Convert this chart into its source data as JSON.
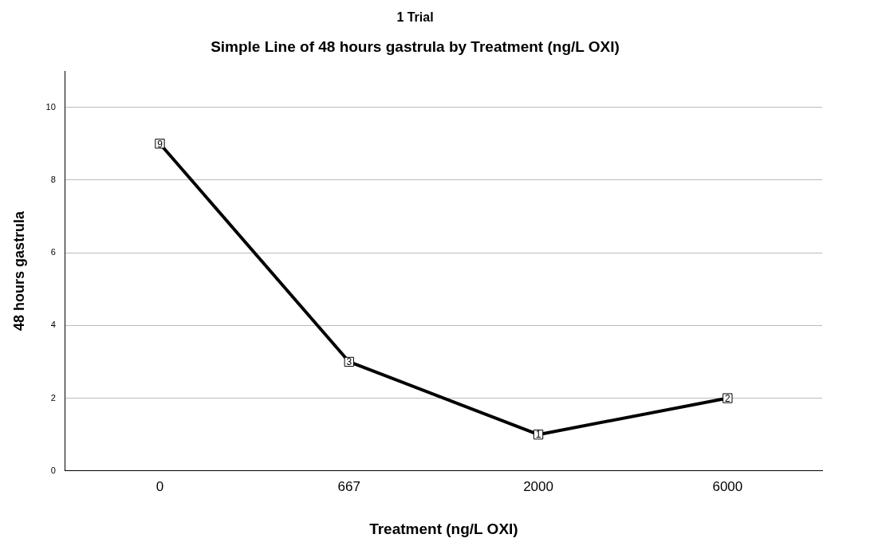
{
  "chart_data": {
    "type": "line",
    "title": "1 Trial",
    "subtitle": "Simple Line of 48 hours gastrula by Treatment (ng/L OXI)",
    "xlabel": "Treatment (ng/L OXI)",
    "ylabel": "48 hours gastrula",
    "categories": [
      "0",
      "667",
      "2000",
      "6000"
    ],
    "series": [
      {
        "color": "#000000",
        "values": [
          9,
          3,
          1,
          2
        ]
      }
    ],
    "ylim": [
      0,
      11
    ],
    "yticks": [
      0,
      2,
      4,
      6,
      8,
      10
    ],
    "grid": "y",
    "marker": "square",
    "data_labels": true
  }
}
